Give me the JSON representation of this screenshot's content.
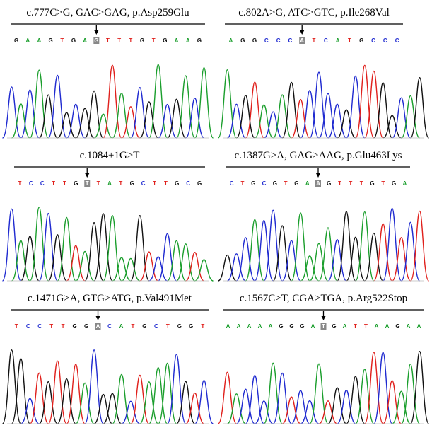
{
  "panels": [
    {
      "title": "c.777C>G, GAC>GAG, p.Asp259Glu",
      "bases": [
        "G",
        "A",
        "A",
        "G",
        "T",
        "G",
        "A",
        "G",
        "T",
        "T",
        "T",
        "G",
        "T",
        "G",
        "A",
        "A",
        "G"
      ]
    },
    {
      "title": "c.802A>G, ATC>GTC, p.Ile268Val",
      "bases": [
        "A",
        "G",
        "G",
        "C",
        "C",
        "C",
        "A",
        "T",
        "C",
        "A",
        "T",
        "G",
        "C",
        "C",
        "C"
      ]
    },
    {
      "title": "c.1084+1G>T",
      "bases": [
        "T",
        "C",
        "C",
        "T",
        "T",
        "G",
        "T",
        "T",
        "A",
        "T",
        "G",
        "C",
        "T",
        "T",
        "G",
        "C",
        "G"
      ]
    },
    {
      "title": "c.1387G>A, GAG>AAG, p.Glu463Lys",
      "bases": [
        "C",
        "T",
        "G",
        "C",
        "G",
        "T",
        "G",
        "A",
        "A",
        "G",
        "T",
        "T",
        "T",
        "G",
        "T",
        "G",
        "A"
      ]
    },
    {
      "title": "c.1471G>A, GTG>ATG, p.Val491Met",
      "bases": [
        "T",
        "C",
        "C",
        "T",
        "T",
        "G",
        "G",
        "A",
        "C",
        "A",
        "T",
        "G",
        "C",
        "T",
        "G",
        "G",
        "T"
      ]
    },
    {
      "title": "c.1567C>T, CGA>TGA, p.Arg522Stop",
      "bases": [
        "A",
        "A",
        "A",
        "A",
        "A",
        "G",
        "G",
        "G",
        "A",
        "T",
        "G",
        "A",
        "T",
        "T",
        "A",
        "A",
        "G",
        "A",
        "A"
      ]
    }
  ]
}
